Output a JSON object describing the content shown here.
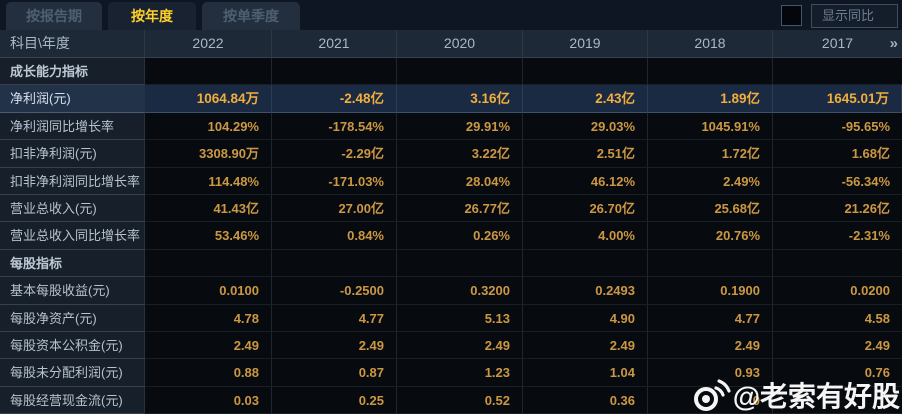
{
  "tabs": [
    {
      "label": "按报告期",
      "active": false
    },
    {
      "label": "按年度",
      "active": true
    },
    {
      "label": "按单季度",
      "active": false
    }
  ],
  "controls": {
    "show_yoy_label": "显示同比",
    "show_yoy_checked": false
  },
  "table": {
    "corner_label": "科目\\年度",
    "years": [
      "2022",
      "2021",
      "2020",
      "2019",
      "2018",
      "2017"
    ],
    "more_years_icon": "»",
    "rows": [
      {
        "type": "section",
        "label": "成长能力指标",
        "values": [
          "",
          "",
          "",
          "",
          "",
          ""
        ]
      },
      {
        "type": "highlight",
        "label": "净利润(元)",
        "values": [
          "1064.84万",
          "-2.48亿",
          "3.16亿",
          "2.43亿",
          "1.89亿",
          "1645.01万"
        ]
      },
      {
        "type": "normal",
        "label": "净利润同比增长率",
        "values": [
          "104.29%",
          "-178.54%",
          "29.91%",
          "29.03%",
          "1045.91%",
          "-95.65%"
        ]
      },
      {
        "type": "normal",
        "label": "扣非净利润(元)",
        "values": [
          "3308.90万",
          "-2.29亿",
          "3.22亿",
          "2.51亿",
          "1.72亿",
          "1.68亿"
        ]
      },
      {
        "type": "normal",
        "label": "扣非净利润同比增长率",
        "values": [
          "114.48%",
          "-171.03%",
          "28.04%",
          "46.12%",
          "2.49%",
          "-56.34%"
        ]
      },
      {
        "type": "normal",
        "label": "营业总收入(元)",
        "values": [
          "41.43亿",
          "27.00亿",
          "26.77亿",
          "26.70亿",
          "25.68亿",
          "21.26亿"
        ]
      },
      {
        "type": "normal",
        "label": "营业总收入同比增长率",
        "values": [
          "53.46%",
          "0.84%",
          "0.26%",
          "4.00%",
          "20.76%",
          "-2.31%"
        ]
      },
      {
        "type": "section",
        "label": "每股指标",
        "values": [
          "",
          "",
          "",
          "",
          "",
          ""
        ]
      },
      {
        "type": "normal",
        "label": "基本每股收益(元)",
        "values": [
          "0.0100",
          "-0.2500",
          "0.3200",
          "0.2493",
          "0.1900",
          "0.0200"
        ]
      },
      {
        "type": "normal",
        "label": "每股净资产(元)",
        "values": [
          "4.78",
          "4.77",
          "5.13",
          "4.90",
          "4.77",
          "4.58"
        ]
      },
      {
        "type": "normal",
        "label": "每股资本公积金(元)",
        "values": [
          "2.49",
          "2.49",
          "2.49",
          "2.49",
          "2.49",
          "2.49"
        ]
      },
      {
        "type": "normal",
        "label": "每股未分配利润(元)",
        "values": [
          "0.88",
          "0.87",
          "1.23",
          "1.04",
          "0.93",
          "0.76"
        ]
      },
      {
        "type": "normal",
        "label": "每股经营现金流(元)",
        "values": [
          "0.03",
          "0.25",
          "0.52",
          "0.36",
          "0",
          ""
        ]
      }
    ]
  },
  "watermark": {
    "icon": "weibo-icon",
    "text": "@老索有好股"
  },
  "colors": {
    "page_background": "#0b1320",
    "tab_active_text": "#ffd02a",
    "value_text": "#cc9742",
    "highlight_value_text": "#f2ae3d",
    "highlight_row_background": "#1a2a43",
    "label_column_background": "#161f2a",
    "header_row_background": "#1d2937"
  }
}
